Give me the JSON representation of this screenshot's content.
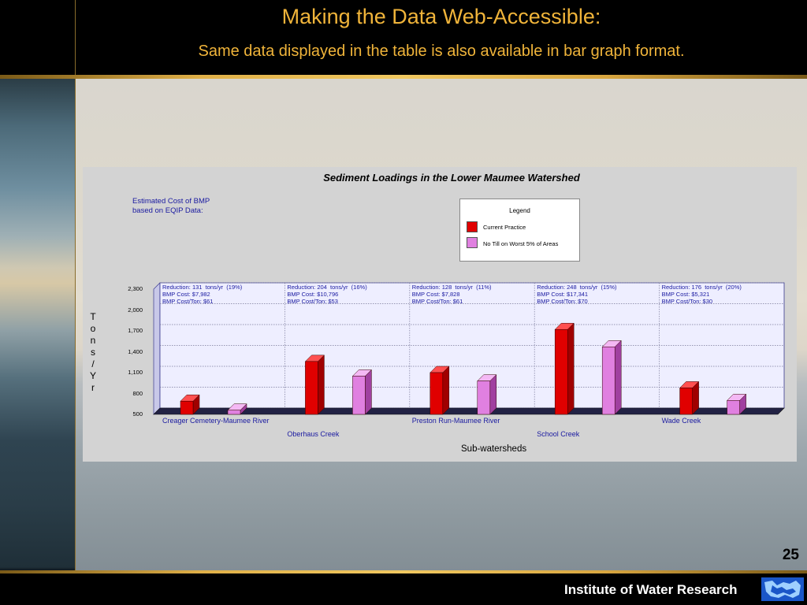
{
  "slide": {
    "title": "Making the Data Web-Accessible:",
    "subtitle": "Same data displayed in the table is also available in bar graph format.",
    "page_number": "25",
    "footer_org": "Institute of Water Research"
  },
  "colors": {
    "header_text": "#f0b43a",
    "current_practice": "#e00000",
    "no_till": "#e080e0",
    "plot_bg": "#eeeeff"
  },
  "chart_data": {
    "type": "bar",
    "title": "Sediment Loadings in the Lower Maumee Watershed",
    "note": [
      "Estimated Cost of BMP",
      "based on EQIP Data:"
    ],
    "xlabel": "Sub-watersheds",
    "ylabel": "Tons / Yr",
    "ylim": [
      500,
      2300
    ],
    "yticks": [
      "2,300",
      "2,000",
      "1,700",
      "1,400",
      "1,100",
      "800",
      "500"
    ],
    "legend": {
      "title": "Legend",
      "placement": "top-center"
    },
    "categories": [
      "Creager Cemetery-Maumee River",
      "Oberhaus Creek",
      "Preston Run-Maumee River",
      "School Creek",
      "Wade Creek"
    ],
    "series": [
      {
        "name": "Current Practice",
        "values": [
          690,
          1260,
          1100,
          1720,
          880
        ]
      },
      {
        "name": "No Till on Worst 5% of Areas",
        "values": [
          560,
          1050,
          980,
          1470,
          700
        ]
      }
    ],
    "annotations": [
      [
        "Reduction: 131  tons/yr  (19%)",
        "BMP Cost: $7,982",
        "BMP Cost/Ton: $61"
      ],
      [
        "Reduction: 204  tons/yr  (16%)",
        "BMP Cost: $10,796",
        "BMP Cost/Ton: $53"
      ],
      [
        "Reduction: 128  tons/yr  (11%)",
        "BMP Cost: $7,828",
        "BMP Cost/Ton: $61"
      ],
      [
        "Reduction: 248  tons/yr  (15%)",
        "BMP Cost: $17,341",
        "BMP Cost/Ton: $70"
      ],
      [
        "Reduction: 176  tons/yr  (20%)",
        "BMP Cost: $5,321",
        "BMP Cost/Ton: $30"
      ]
    ],
    "grid": true
  }
}
